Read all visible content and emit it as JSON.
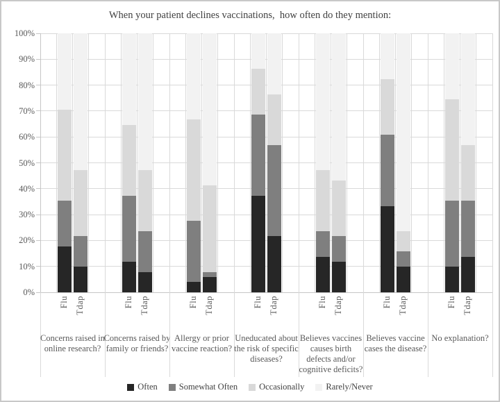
{
  "chart_data": {
    "type": "bar",
    "stacked": true,
    "orientation": "vertical",
    "title": "When your patient declines vaccinations,  how often do they mention:",
    "y_axis": {
      "min": 0,
      "max": 100,
      "tick_step": 10,
      "tick_labels": [
        "0%",
        "10%",
        "20%",
        "30%",
        "40%",
        "50%",
        "60%",
        "70%",
        "80%",
        "90%",
        "100%"
      ],
      "grid": true
    },
    "bar_labels": [
      "Flu",
      "Tdap"
    ],
    "categories": [
      "Concerns raised in online research?",
      "Concerns raised by family or friends?",
      "Allergy or prior vaccine reaction?",
      "Uneducated about the risk of specific diseases?",
      "Believes vaccines causes birth defects and/or cognitive deficits?",
      "Believes vaccine cases the disease?",
      "No explanation?"
    ],
    "series": [
      {
        "name": "Often",
        "color": "#262626",
        "flu": [
          17.6,
          11.8,
          3.9,
          37.3,
          13.7,
          33.3,
          9.8
        ],
        "tdap": [
          9.8,
          7.8,
          5.9,
          21.6,
          11.8,
          9.8,
          13.7
        ]
      },
      {
        "name": "Somewhat Often",
        "color": "#7f7f7f",
        "flu": [
          17.7,
          25.5,
          23.6,
          31.3,
          9.8,
          27.5,
          25.5
        ],
        "tdap": [
          11.8,
          15.7,
          1.9,
          35.3,
          9.8,
          5.9,
          21.6
        ]
      },
      {
        "name": "Occasionally",
        "color": "#d9d9d9",
        "flu": [
          35.3,
          27.4,
          39.2,
          17.7,
          23.6,
          21.6,
          39.2
        ],
        "tdap": [
          25.5,
          23.6,
          33.4,
          19.6,
          21.5,
          7.8,
          21.6
        ]
      },
      {
        "name": "Rarely/Never",
        "color": "#f2f2f2",
        "flu": [
          29.4,
          35.3,
          33.3,
          13.7,
          52.9,
          17.6,
          25.5
        ],
        "tdap": [
          52.9,
          52.9,
          58.8,
          23.5,
          56.9,
          76.5,
          43.1
        ]
      }
    ],
    "legend": {
      "position": "bottom",
      "entries": [
        "Often",
        "Somewhat Often",
        "Occasionally",
        "Rarely/Never"
      ]
    },
    "colors": {
      "gridline": "#d9d9d9",
      "axis_line": "#c6c6c6",
      "tick_text": "#595959",
      "title_text": "#3f3f3f",
      "frame_border": "#c8c8c8",
      "background": "#ffffff"
    }
  }
}
